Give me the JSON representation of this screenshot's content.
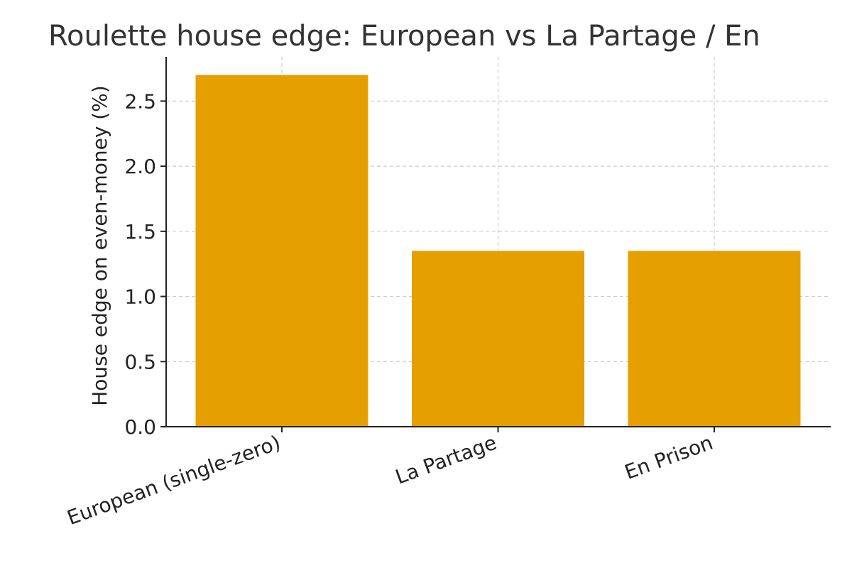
{
  "chart_data": {
    "type": "bar",
    "title": "Roulette house edge: European vs La Partage / En",
    "xlabel": "",
    "ylabel": "House edge on even-money (%)",
    "categories": [
      "European (single-zero)",
      "La Partage",
      "En Prison"
    ],
    "values": [
      2.7,
      1.35,
      1.35
    ],
    "ylim": [
      0,
      2.84
    ],
    "yticks": [
      0.0,
      0.5,
      1.0,
      1.5,
      2.0,
      2.5
    ],
    "ytick_labels": [
      "0.0",
      "0.5",
      "1.0",
      "1.5",
      "2.0",
      "2.5"
    ],
    "grid": true,
    "bar_color": "#E69F00",
    "grid_color": "#cccccc",
    "axis_color": "#222222"
  }
}
